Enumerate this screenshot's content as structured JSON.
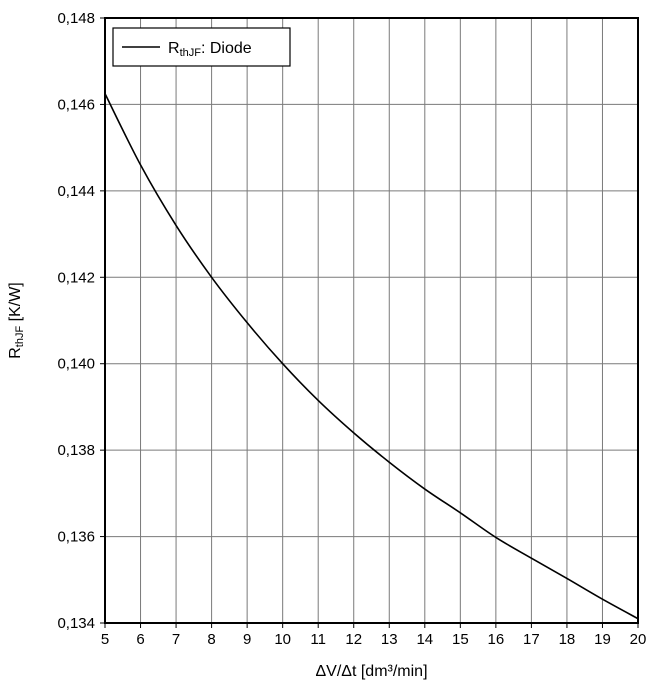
{
  "chart_data": {
    "type": "line",
    "title": "",
    "xlabel": "ΔV/Δt [dm³/min]",
    "ylabel": {
      "main": "R",
      "sub": "thJF",
      "rest": " [K/W]"
    },
    "xlim": [
      5,
      20
    ],
    "ylim": [
      0.134,
      0.148
    ],
    "grid": true,
    "legend_position": "top-left",
    "x_ticks": [
      5,
      6,
      7,
      8,
      9,
      10,
      11,
      12,
      13,
      14,
      15,
      16,
      17,
      18,
      19,
      20
    ],
    "x_tick_labels": [
      "5",
      "6",
      "7",
      "8",
      "9",
      "10",
      "11",
      "12",
      "13",
      "14",
      "15",
      "16",
      "17",
      "18",
      "19",
      "20"
    ],
    "y_ticks": [
      0.134,
      0.136,
      0.138,
      0.14,
      0.142,
      0.144,
      0.146,
      0.148
    ],
    "y_tick_labels": [
      "0,134",
      "0,136",
      "0,138",
      "0,140",
      "0,142",
      "0,144",
      "0,146",
      "0,148"
    ],
    "series": [
      {
        "name": {
          "main": "R",
          "sub": "thJF",
          "rest": ": Diode"
        },
        "color": "#000000",
        "x": [
          5,
          6,
          7,
          8,
          9,
          10,
          11,
          12,
          13,
          14,
          15,
          16,
          17,
          18,
          19,
          20
        ],
        "y": [
          0.14625,
          0.1446,
          0.1432,
          0.142,
          0.14095,
          0.14,
          0.13915,
          0.1384,
          0.13772,
          0.1371,
          0.13655,
          0.13598,
          0.1355,
          0.13503,
          0.13455,
          0.1341
        ]
      }
    ]
  }
}
